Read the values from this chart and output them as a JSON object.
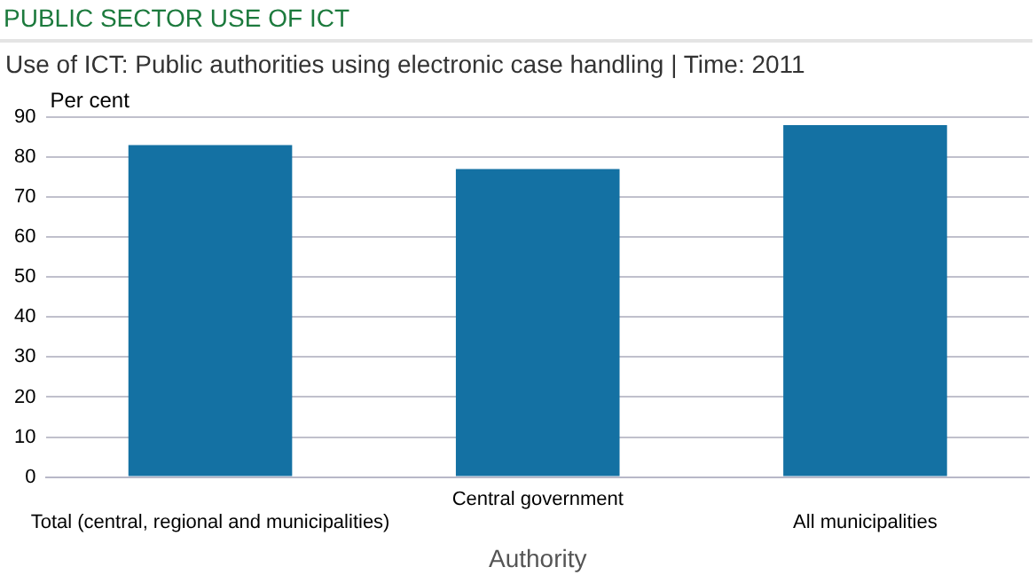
{
  "chart_data": {
    "type": "bar",
    "title": "PUBLIC SECTOR USE OF ICT",
    "subtitle": "Use of ICT: Public authorities using electronic case handling | Time: 2011",
    "xlabel": "Authority",
    "ylabel": "Per cent",
    "categories": [
      "Total (central, regional and municipalities)",
      "Central government",
      "All municipalities"
    ],
    "values": [
      83,
      77,
      88
    ],
    "color": "#1471a3",
    "ylim": [
      0,
      90
    ],
    "yticks": [
      0,
      10,
      20,
      30,
      40,
      50,
      60,
      70,
      80,
      90
    ],
    "grid": "y",
    "legend": false
  }
}
